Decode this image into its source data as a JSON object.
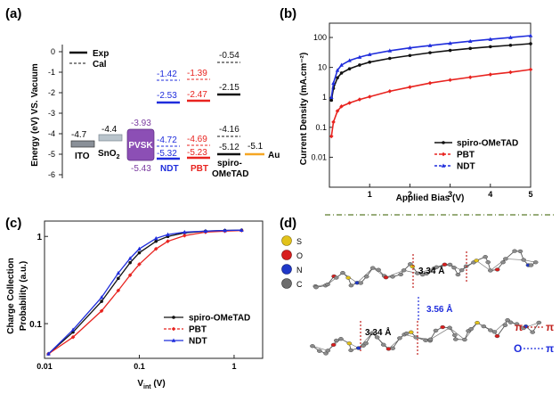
{
  "panel_labels": {
    "a": "(a)",
    "b": "(b)",
    "c": "(c)",
    "d": "(d)"
  },
  "colors": {
    "black": "#111111",
    "red": "#e8231f",
    "blue": "#1f2ddc",
    "purple": "#7a3ba0",
    "orange": "#f5a623",
    "gray": "#8a9098"
  },
  "panel_a": {
    "ylabel": "Energy (eV) VS. Vacuum",
    "legend": {
      "exp": "Exp",
      "cal": "Cal"
    },
    "yticks": [
      "0",
      "-1",
      "-2",
      "-3",
      "-4",
      "-5",
      "-6"
    ],
    "materials": {
      "ito": {
        "name": "ITO",
        "level": "-4.7"
      },
      "sno2": {
        "name": "SnO",
        "sub": "2",
        "level": "-4.4"
      },
      "pvsk": {
        "name": "PVSK",
        "cb": "-3.93",
        "vb": "-5.43"
      },
      "ndt": {
        "name": "NDT",
        "lumo_cal": "-1.42",
        "lumo_exp": "-2.53",
        "homo_exp": "-4.72",
        "homo_cal": "-5.32"
      },
      "pbt": {
        "name": "PBT",
        "lumo_cal": "-1.39",
        "lumo_exp": "-2.47",
        "homo_exp": "-4.69",
        "homo_cal": "-5.23"
      },
      "spiro": {
        "name1": "spiro-",
        "name2": "OMeTAD",
        "lumo_cal": "-0.54",
        "lumo_exp": "-2.15",
        "homo_cal": "-4.16",
        "homo_exp": "-5.12"
      },
      "au": {
        "name": "Au",
        "level": "-5.1"
      }
    }
  },
  "chart_data": [
    {
      "type": "line",
      "panel": "b",
      "xlabel": "Applied Bias (V)",
      "ylabel": "Current Density (mA.cm⁻²)",
      "xlim": [
        0,
        5
      ],
      "ylim": [
        0.001,
        300
      ],
      "yscale": "log",
      "xticks": [
        "1",
        "2",
        "3",
        "4",
        "5"
      ],
      "yticks": [
        "0.01",
        "0.1",
        "1",
        "10",
        "100"
      ],
      "legend_position": "bottom-right",
      "series": [
        {
          "name": "spiro-OMeTAD",
          "color": "#111111",
          "x": [
            0.05,
            0.1,
            0.2,
            0.3,
            0.5,
            0.75,
            1,
            1.5,
            2,
            2.5,
            3,
            3.5,
            4,
            4.5,
            5
          ],
          "y": [
            0.8,
            2,
            4.5,
            6.5,
            9,
            12,
            15,
            20,
            25,
            31,
            37,
            43,
            49,
            55,
            62
          ]
        },
        {
          "name": "PBT",
          "color": "#e8231f",
          "x": [
            0.05,
            0.1,
            0.2,
            0.3,
            0.5,
            0.75,
            1,
            1.5,
            2,
            2.5,
            3,
            3.5,
            4,
            4.5,
            5
          ],
          "y": [
            0.05,
            0.15,
            0.35,
            0.5,
            0.65,
            0.85,
            1.05,
            1.6,
            2.2,
            3,
            3.8,
            4.7,
            5.8,
            6.9,
            8.5
          ]
        },
        {
          "name": "NDT",
          "color": "#1f2ddc",
          "x": [
            0.05,
            0.1,
            0.2,
            0.3,
            0.5,
            0.75,
            1,
            1.5,
            2,
            2.5,
            3,
            3.5,
            4,
            4.5,
            5
          ],
          "y": [
            1,
            3,
            8,
            12,
            17,
            22,
            27,
            36,
            45,
            54,
            64,
            75,
            87,
            100,
            115
          ]
        }
      ]
    },
    {
      "type": "line",
      "panel": "c",
      "ylabel1": "Charge Collection",
      "ylabel2": "Probability (a.u.)",
      "xlabel_main": "V",
      "xlabel_sub": "int",
      "xlabel_unit": " (V)",
      "xscale": "log",
      "yscale": "log",
      "xlim": [
        0.01,
        2
      ],
      "ylim": [
        0.04,
        1.5
      ],
      "xticks": [
        "0.01",
        "0.1",
        "1"
      ],
      "yticks": [
        "0.1",
        "1"
      ],
      "legend_position": "bottom-right",
      "series": [
        {
          "name": "spiro-OMeTAD",
          "color": "#111111",
          "x": [
            0.011,
            0.02,
            0.04,
            0.06,
            0.08,
            0.1,
            0.15,
            0.2,
            0.3,
            0.5,
            0.8,
            1.2
          ],
          "y": [
            0.045,
            0.08,
            0.18,
            0.33,
            0.5,
            0.65,
            0.88,
            1.0,
            1.1,
            1.15,
            1.17,
            1.18
          ]
        },
        {
          "name": "PBT",
          "color": "#e8231f",
          "x": [
            0.011,
            0.02,
            0.04,
            0.06,
            0.08,
            0.1,
            0.15,
            0.2,
            0.3,
            0.5,
            0.8,
            1.2
          ],
          "y": [
            0.045,
            0.07,
            0.14,
            0.24,
            0.36,
            0.48,
            0.72,
            0.88,
            1.02,
            1.12,
            1.15,
            1.17
          ]
        },
        {
          "name": "NDT",
          "color": "#1f2ddc",
          "x": [
            0.011,
            0.02,
            0.04,
            0.06,
            0.08,
            0.1,
            0.15,
            0.2,
            0.3,
            0.5,
            0.8,
            1.2
          ],
          "y": [
            0.045,
            0.085,
            0.2,
            0.38,
            0.56,
            0.72,
            0.95,
            1.05,
            1.12,
            1.15,
            1.17,
            1.18
          ]
        }
      ]
    }
  ],
  "panel_d": {
    "atoms": [
      {
        "symbol": "S",
        "color": "#e2c21a"
      },
      {
        "symbol": "O",
        "color": "#d81e1e"
      },
      {
        "symbol": "N",
        "color": "#1f38c8"
      },
      {
        "symbol": "C",
        "color": "#6e6e6e"
      }
    ],
    "dist_top": "3.34 Å",
    "dist_mid": "3.56 Å",
    "dist_bot": "3.34 Å",
    "legend_pi1": "π",
    "legend_pi2": "π",
    "legend_o": "O",
    "legend_pi3": "π"
  }
}
